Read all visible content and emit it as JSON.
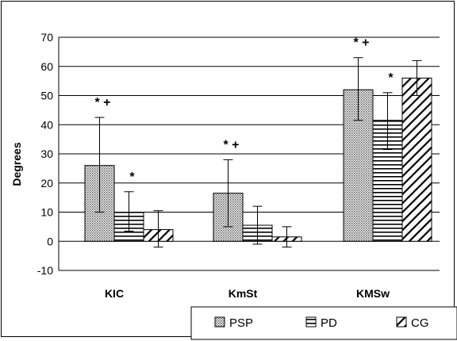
{
  "chart_data": {
    "type": "bar",
    "categories": [
      "KIC",
      "KmSt",
      "KMSw"
    ],
    "ylabel": "Degrees",
    "xlabel": "",
    "ylim": [
      -10,
      70
    ],
    "yticks": [
      70,
      60,
      50,
      40,
      30,
      20,
      10,
      0,
      -10
    ],
    "grid": true,
    "legend_position": "bottom-right",
    "series": [
      {
        "name": "PSP",
        "pattern": "crosshatch",
        "values": [
          26,
          16.5,
          52
        ],
        "err_high": [
          42.5,
          28,
          63
        ],
        "err_low": [
          10,
          5,
          41.5
        ],
        "annotations": [
          "* +",
          "* +",
          "* +"
        ]
      },
      {
        "name": "PD",
        "pattern": "horizontal",
        "values": [
          10,
          5.5,
          41.5
        ],
        "err_high": [
          17,
          12,
          51
        ],
        "err_low": [
          3.5,
          -1,
          31.5
        ],
        "annotations": [
          "*",
          "",
          "*"
        ]
      },
      {
        "name": "CG",
        "pattern": "diagonal",
        "values": [
          4,
          1.5,
          56
        ],
        "err_high": [
          10.5,
          5,
          62
        ],
        "err_low": [
          -2,
          -2,
          50
        ],
        "annotations": [
          "",
          "",
          ""
        ]
      }
    ]
  }
}
